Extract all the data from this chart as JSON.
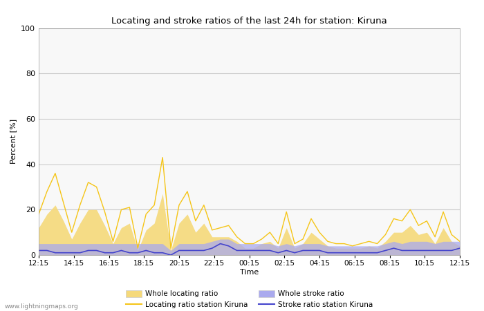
{
  "title": "Locating and stroke ratios of the last 24h for station: Kiruna",
  "ylabel": "Percent [%]",
  "xlabel": "Time",
  "watermark": "www.lightningmaps.org",
  "ylim": [
    0,
    100
  ],
  "yticks": [
    0,
    20,
    40,
    60,
    80,
    100
  ],
  "xtick_labels": [
    "12:15",
    "14:15",
    "16:15",
    "18:15",
    "20:15",
    "22:15",
    "00:15",
    "02:15",
    "04:15",
    "06:15",
    "08:15",
    "10:15",
    "12:15"
  ],
  "color_locating_line": "#f5c518",
  "color_locating_fill": "#f5d97a",
  "color_stroke_line": "#4444cc",
  "color_stroke_fill": "#aaaaee",
  "background_color": "#f8f8f8",
  "grid_color": "#cccccc",
  "locating_line": [
    18,
    28,
    36,
    23,
    10,
    22,
    32,
    30,
    19,
    6,
    20,
    21,
    3,
    18,
    22,
    43,
    3,
    22,
    28,
    15,
    22,
    11,
    12,
    13,
    8,
    5,
    5,
    7,
    10,
    5,
    19,
    5,
    7,
    16,
    10,
    6,
    5,
    5,
    4,
    5,
    6,
    5,
    9,
    16,
    15,
    20,
    13,
    15,
    8,
    19,
    9,
    6
  ],
  "locating_fill": [
    12,
    18,
    22,
    15,
    7,
    14,
    20,
    20,
    13,
    5,
    12,
    14,
    2,
    11,
    14,
    27,
    2,
    14,
    18,
    10,
    14,
    8,
    8,
    8,
    6,
    3,
    3,
    5,
    6,
    3,
    12,
    3,
    5,
    10,
    7,
    4,
    3,
    3,
    3,
    3,
    4,
    3,
    6,
    10,
    10,
    13,
    9,
    10,
    5,
    12,
    6,
    4
  ],
  "stroke_line": [
    2,
    2,
    1,
    1,
    1,
    1,
    2,
    2,
    1,
    1,
    2,
    1,
    1,
    2,
    1,
    1,
    0,
    2,
    2,
    2,
    2,
    3,
    5,
    4,
    2,
    2,
    2,
    2,
    2,
    1,
    2,
    1,
    2,
    2,
    2,
    1,
    1,
    1,
    1,
    1,
    1,
    1,
    2,
    3,
    2,
    2,
    2,
    2,
    2,
    2,
    2,
    3
  ],
  "stroke_fill": [
    5,
    5,
    5,
    5,
    5,
    5,
    5,
    5,
    5,
    5,
    5,
    5,
    5,
    5,
    5,
    5,
    2,
    5,
    5,
    5,
    5,
    6,
    7,
    7,
    5,
    5,
    5,
    5,
    5,
    4,
    5,
    4,
    5,
    5,
    5,
    4,
    4,
    4,
    4,
    4,
    4,
    4,
    5,
    6,
    5,
    6,
    6,
    6,
    5,
    6,
    6,
    6
  ],
  "legend_row1": [
    {
      "label": "Whole locating ratio",
      "color": "#f5d97a",
      "type": "fill"
    },
    {
      "label": "Locating ratio station Kiruna",
      "color": "#f5c518",
      "type": "line"
    }
  ],
  "legend_row2": [
    {
      "label": "Whole stroke ratio",
      "color": "#aaaaee",
      "type": "fill"
    },
    {
      "label": "Stroke ratio station Kiruna",
      "color": "#4444cc",
      "type": "line"
    }
  ]
}
